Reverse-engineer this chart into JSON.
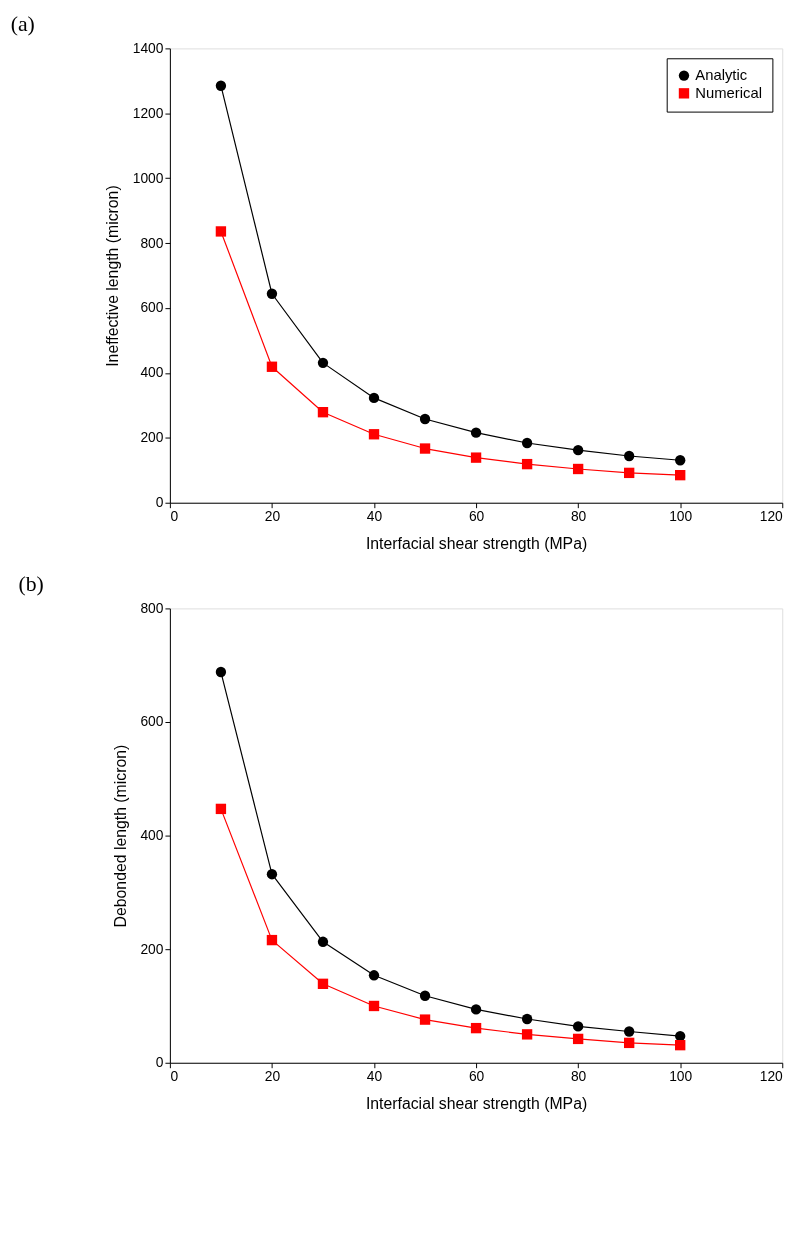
{
  "chart_data": [
    {
      "type": "line",
      "title": "(a)",
      "xlabel": "Interfacial shear strength (MPa)",
      "ylabel": "Ineffective length (micron)",
      "x": [
        10,
        20,
        30,
        40,
        50,
        60,
        70,
        80,
        90,
        100
      ],
      "series": [
        {
          "name": "Analytic",
          "color": "#000000",
          "marker": "circle",
          "values": [
            1285,
            644,
            431,
            323,
            258,
            216,
            184,
            162,
            144,
            131
          ]
        },
        {
          "name": "Numerical",
          "color": "#ff0000",
          "marker": "square",
          "values": [
            836,
            419,
            279,
            211,
            167,
            139,
            119,
            104,
            92,
            85
          ]
        }
      ],
      "xlim": [
        0,
        120
      ],
      "xticks": [
        0,
        20,
        40,
        60,
        80,
        100,
        120
      ],
      "ylim": [
        0,
        1400
      ],
      "yticks": [
        0,
        200,
        400,
        600,
        800,
        1000,
        1200,
        1400
      ],
      "legend": "top right"
    },
    {
      "type": "line",
      "title": "(b)",
      "xlabel": "Interfacial shear strength (MPa)",
      "ylabel": "Debonded length (micron)",
      "x": [
        10,
        20,
        30,
        40,
        50,
        60,
        70,
        80,
        90,
        100
      ],
      "series": [
        {
          "name": "Analytic",
          "color": "#000000",
          "marker": "circle",
          "values": [
            688,
            332,
            213,
            154,
            118,
            94,
            77,
            64,
            55,
            47
          ]
        },
        {
          "name": "Numerical",
          "color": "#ff0000",
          "marker": "square",
          "values": [
            447,
            216,
            139,
            100,
            76,
            61,
            50,
            42,
            35,
            31
          ]
        }
      ],
      "xlim": [
        0,
        120
      ],
      "xticks": [
        0,
        20,
        40,
        60,
        80,
        100,
        120
      ],
      "ylim": [
        0,
        800
      ],
      "yticks": [
        0,
        200,
        400,
        600,
        800
      ],
      "legend": "top right"
    }
  ]
}
